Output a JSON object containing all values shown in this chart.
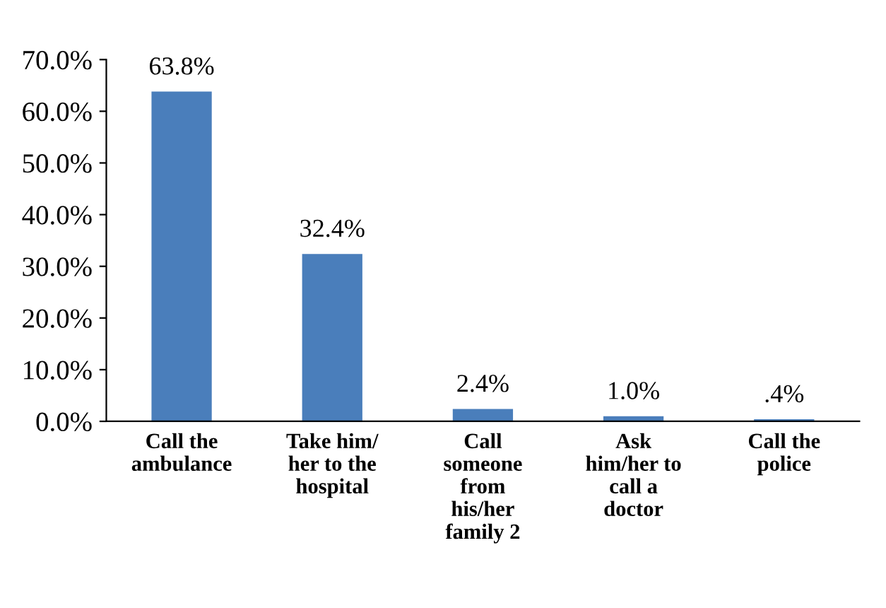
{
  "chart_data": {
    "type": "bar",
    "categories": [
      "Call the\nambulance",
      "Take him/\nher to the\nhospital",
      "Call\nsomeone\nfrom\nhis/her\nfamily 2",
      "Ask\nhim/her to\ncall a\ndoctor",
      "Call the\npolice"
    ],
    "values": [
      63.8,
      32.4,
      2.4,
      1.0,
      0.4
    ],
    "value_labels": [
      "63.8%",
      "32.4%",
      "2.4%",
      "1.0%",
      ".4%"
    ],
    "color": "#4a7ebb",
    "ylim": [
      0,
      70
    ],
    "yticks": [
      {
        "value": 0,
        "label": "0.0%"
      },
      {
        "value": 10,
        "label": "10.0%"
      },
      {
        "value": 20,
        "label": "20.0%"
      },
      {
        "value": 30,
        "label": "30.0%"
      },
      {
        "value": 40,
        "label": "40.0%"
      },
      {
        "value": 50,
        "label": "50.0%"
      },
      {
        "value": 60,
        "label": "60.0%"
      },
      {
        "value": 70,
        "label": "70.0%"
      }
    ],
    "grid": false,
    "legend": false
  }
}
